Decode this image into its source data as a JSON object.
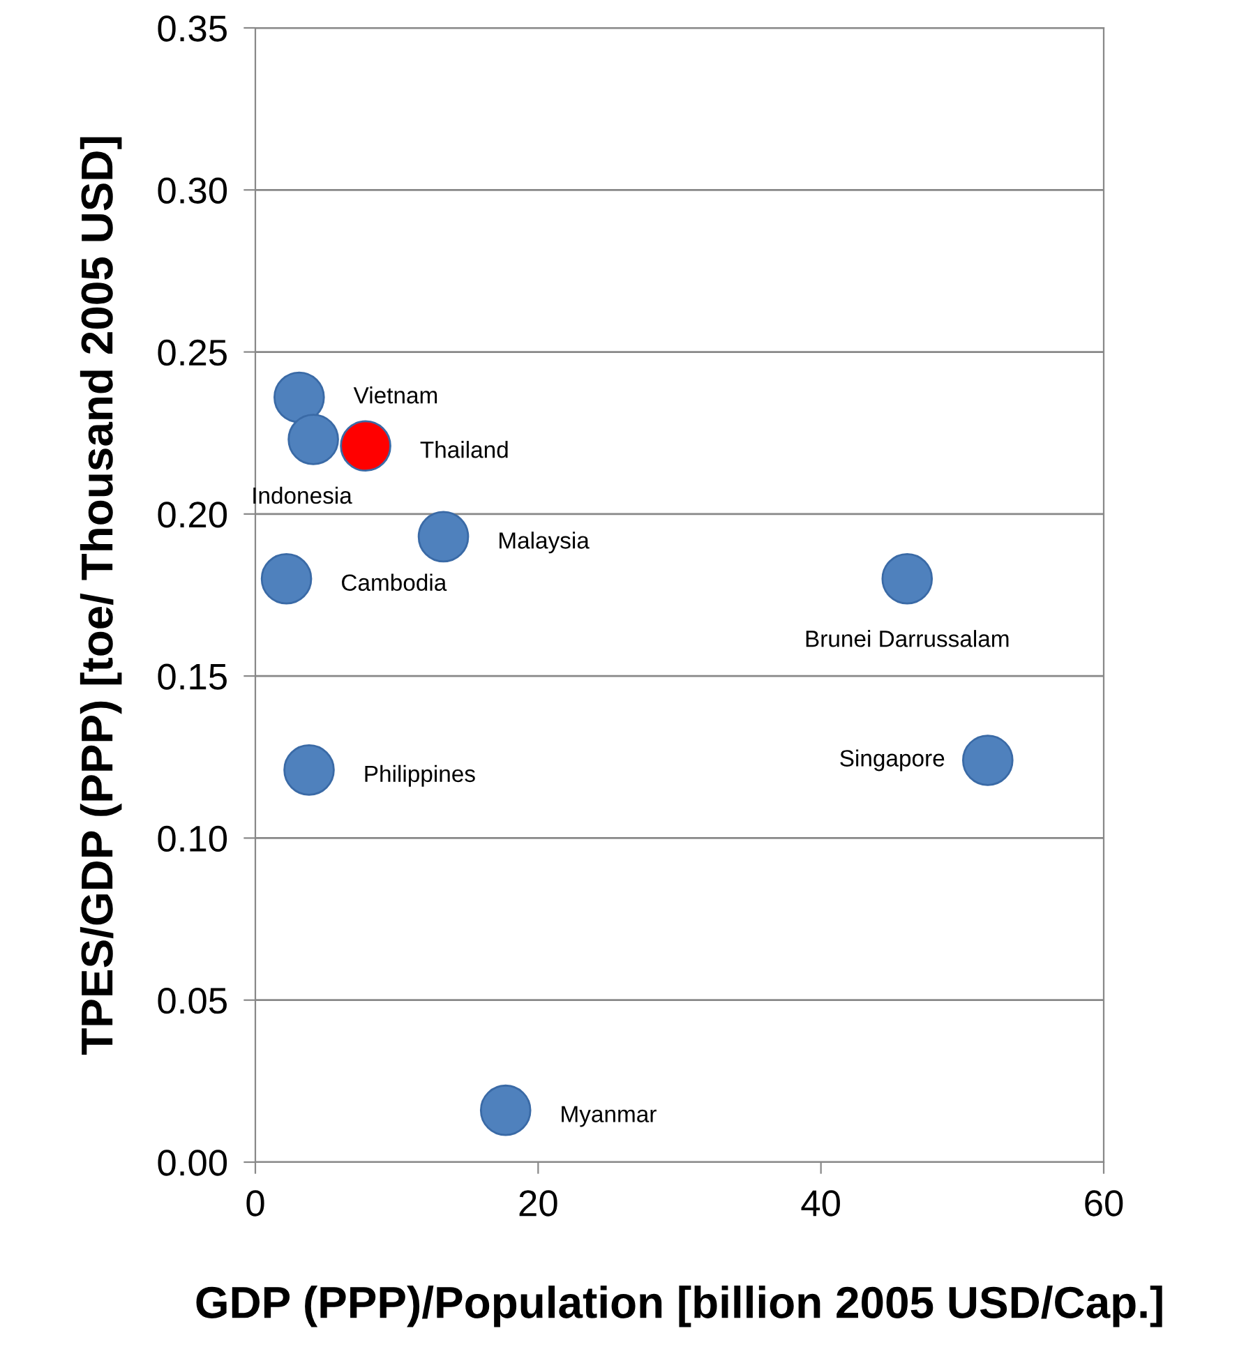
{
  "chart_data": {
    "type": "scatter",
    "xlabel": "GDP (PPP)/Population [billion 2005 USD/Cap.]",
    "ylabel": "TPES/GDP (PPP) [toe/ Thousand 2005 USD]",
    "series": [
      {
        "x": [
          3.1,
          4.1,
          7.8,
          13.3,
          2.2,
          46.1,
          3.8,
          51.8,
          17.7
        ],
        "values": [
          0.236,
          0.223,
          0.221,
          0.193,
          0.18,
          0.18,
          0.121,
          0.124,
          0.016
        ],
        "colors": [
          "#4f81bd",
          "#4f81bd",
          "#ff0000",
          "#4f81bd",
          "#4f81bd",
          "#4f81bd",
          "#4f81bd",
          "#4f81bd",
          "#4f81bd"
        ]
      }
    ],
    "annotations": [
      {
        "text": "Vietnam",
        "x": 3.1,
        "y": 0.236
      },
      {
        "text": "Indonesia",
        "x": 4.1,
        "y": 0.223
      },
      {
        "text": "Thailand",
        "x": 7.8,
        "y": 0.221
      },
      {
        "text": "Malaysia",
        "x": 13.3,
        "y": 0.193
      },
      {
        "text": "Cambodia",
        "x": 2.2,
        "y": 0.18
      },
      {
        "text": "Brunei Darrussalam",
        "x": 46.1,
        "y": 0.18
      },
      {
        "text": "Philippines",
        "x": 3.8,
        "y": 0.121
      },
      {
        "text": "Singapore",
        "x": 51.8,
        "y": 0.124
      },
      {
        "text": "Myanmar",
        "x": 17.7,
        "y": 0.016
      }
    ],
    "xlim": [
      0,
      60
    ],
    "xticks": [
      0,
      20,
      40,
      60
    ],
    "ylim": [
      0,
      0.35
    ],
    "yticks": [
      {
        "value": 0,
        "label": "0.00"
      },
      {
        "value": 0.05,
        "label": "0.05"
      },
      {
        "value": 0.1,
        "label": "0.10"
      },
      {
        "value": 0.15,
        "label": "0.15"
      },
      {
        "value": 0.2,
        "label": "0.20"
      },
      {
        "value": 0.25,
        "label": "0.25"
      },
      {
        "value": 0.3,
        "label": "0.30"
      },
      {
        "value": 0.35,
        "label": "0.35"
      }
    ],
    "grid": "y",
    "marker": "circle",
    "legend": false
  }
}
